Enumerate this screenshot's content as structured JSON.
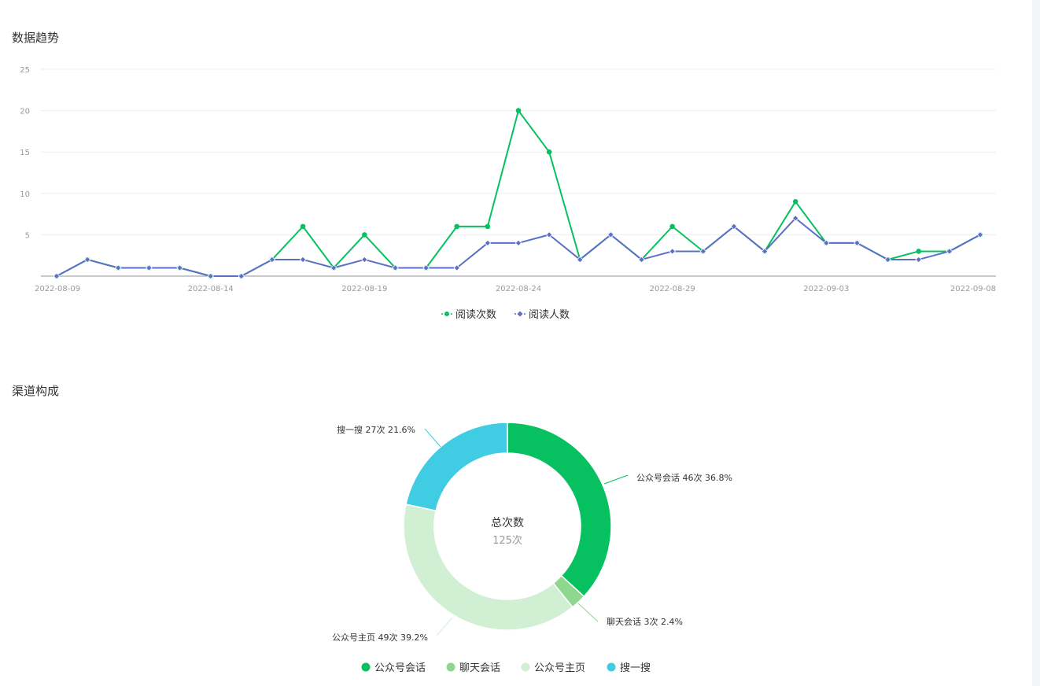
{
  "sections": {
    "trend_title": "数据趋势",
    "channel_title": "渠道构成"
  },
  "colors": {
    "read_count": "#07c160",
    "reader_count": "#5b6fc4",
    "axis": "#aaaaaa",
    "grid": "#eeeeee"
  },
  "chart_data": [
    {
      "type": "line",
      "title": "数据趋势",
      "x": [
        "2022-08-09",
        "2022-08-10",
        "2022-08-11",
        "2022-08-12",
        "2022-08-13",
        "2022-08-14",
        "2022-08-15",
        "2022-08-16",
        "2022-08-17",
        "2022-08-18",
        "2022-08-19",
        "2022-08-20",
        "2022-08-21",
        "2022-08-22",
        "2022-08-23",
        "2022-08-24",
        "2022-08-25",
        "2022-08-26",
        "2022-08-27",
        "2022-08-28",
        "2022-08-29",
        "2022-08-30",
        "2022-08-31",
        "2022-09-01",
        "2022-09-02",
        "2022-09-03",
        "2022-09-04",
        "2022-09-05",
        "2022-09-06",
        "2022-09-07",
        "2022-09-08"
      ],
      "x_tick_labels": [
        "2022-08-09",
        "2022-08-14",
        "2022-08-19",
        "2022-08-24",
        "2022-08-29",
        "2022-09-03",
        "2022-09-08"
      ],
      "y_tick_labels": [
        "5",
        "10",
        "15",
        "20",
        "25"
      ],
      "ylim": [
        0,
        25
      ],
      "grid": true,
      "legend_position": "bottom",
      "series": [
        {
          "name": "阅读次数",
          "color": "#07c160",
          "marker": "circle",
          "values": [
            0,
            2,
            1,
            1,
            1,
            0,
            0,
            2,
            6,
            1,
            5,
            1,
            1,
            6,
            6,
            20,
            15,
            2,
            5,
            2,
            6,
            3,
            6,
            3,
            9,
            4,
            4,
            2,
            3,
            3,
            5
          ]
        },
        {
          "name": "阅读人数",
          "color": "#5b6fc4",
          "marker": "diamond",
          "values": [
            0,
            2,
            1,
            1,
            1,
            0,
            0,
            2,
            2,
            1,
            2,
            1,
            1,
            1,
            4,
            4,
            5,
            2,
            5,
            2,
            3,
            3,
            6,
            3,
            7,
            4,
            4,
            2,
            2,
            3,
            5
          ]
        }
      ]
    },
    {
      "type": "pie",
      "title": "渠道构成",
      "center_title": "总次数",
      "center_value": "125次",
      "total": 125,
      "legend_position": "bottom",
      "slices": [
        {
          "name": "公众号会话",
          "value": 46,
          "label": "公众号会话 46次 36.8%",
          "color": "#07c160"
        },
        {
          "name": "聊天会话",
          "value": 3,
          "label": "聊天会话 3次 2.4%",
          "color": "#8fd68f"
        },
        {
          "name": "公众号主页",
          "value": 49,
          "label": "公众号主页 49次 39.2%",
          "color": "#d1f0d3"
        },
        {
          "name": "搜一搜",
          "value": 27,
          "label": "搜一搜 27次 21.6%",
          "color": "#40cce2"
        }
      ]
    }
  ]
}
